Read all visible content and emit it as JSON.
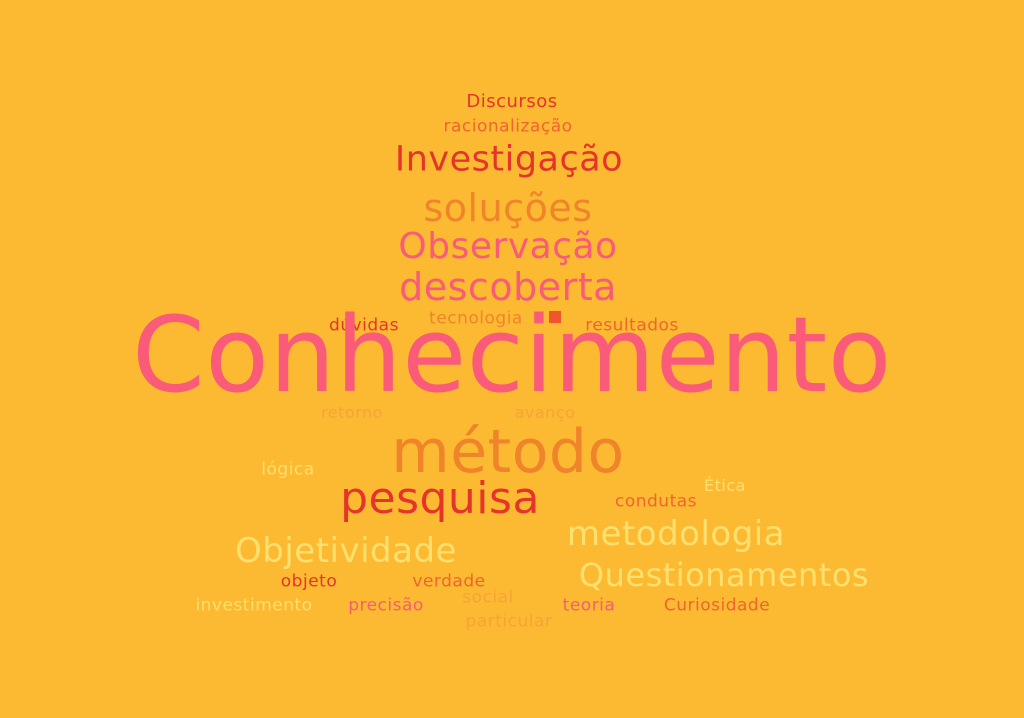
{
  "colors": {
    "background": "#FCBA33",
    "pink": "#F95B78",
    "red": "#E5352B",
    "orange": "#F0842A",
    "deep_orange": "#F06430",
    "pale_yellow": "#FDE06E",
    "light_orange": "#F7A23A"
  },
  "words": {
    "discursos": "Discursos",
    "racionalizacao": "racionalização",
    "investigacao": "Investigação",
    "solucoes": "soluções",
    "observacao": "Observação",
    "descoberta": "descoberta",
    "duvidas": "dúvidas",
    "tecnologia": "tecnologia",
    "resultados": "resultados",
    "conhecimento": "Conhecimento",
    "retorno": "retorno",
    "avanco": "avanço",
    "metodo": "método",
    "logica": "lógica",
    "etica": "Ética",
    "pesquisa": "pesquisa",
    "condutas": "condutas",
    "metodologia": "metodologia",
    "objetividade": "Objetividade",
    "questionamentos": "Questionamentos",
    "objeto": "objeto",
    "verdade": "verdade",
    "social": "social",
    "investimento": "investimento",
    "precisao": "precisão",
    "teoria": "teoria",
    "curiosidade": "Curiosidade",
    "particular": "particular"
  }
}
